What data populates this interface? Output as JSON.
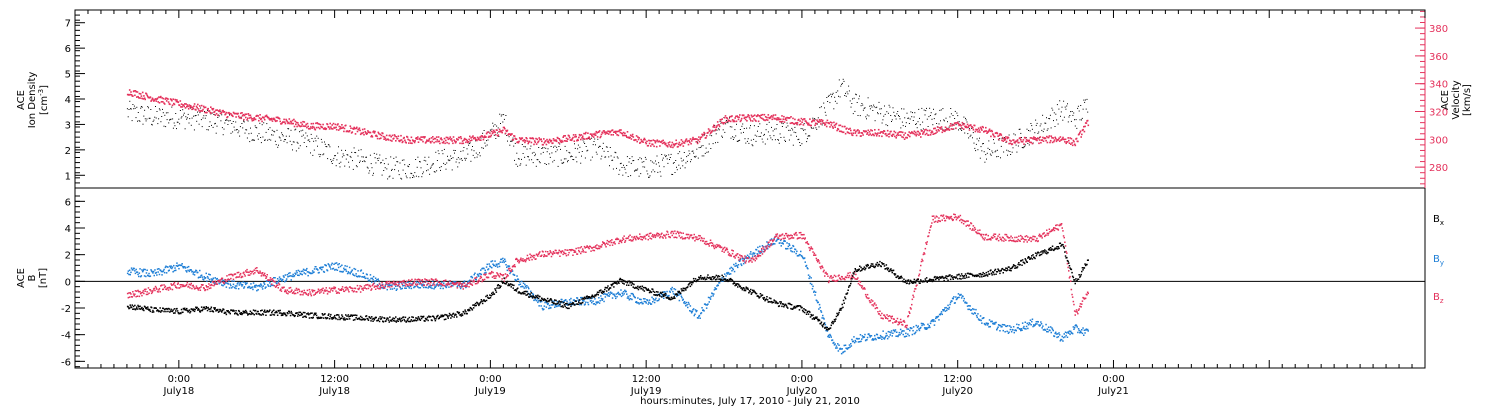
{
  "colors": {
    "black": "#000000",
    "pink": "#e4325c",
    "blue": "#1f7fd6"
  },
  "chart_data": [
    {
      "type": "scatter",
      "panel": "top",
      "ylabel_left_lines": [
        "ACE",
        "Ion Density",
        "[cm",
        "-3",
        "]"
      ],
      "ylabel_right_lines": [
        "ACE",
        "Velocity",
        "[km/s]"
      ],
      "left_ylim": [
        0.5,
        7.5
      ],
      "left_yticks": [
        1,
        2,
        3,
        4,
        5,
        6,
        7
      ],
      "right_ylim": [
        265,
        393
      ],
      "right_yticks": [
        280,
        300,
        320,
        340,
        360,
        380
      ],
      "series": [
        {
          "name": "",
          "color": "black",
          "axis": "left",
          "x_hours": [
            -4,
            -2,
            0,
            2,
            4,
            6,
            8,
            10,
            12,
            14,
            16,
            18,
            20,
            22,
            24,
            25,
            26,
            28,
            30,
            32,
            34,
            36,
            38,
            40,
            42,
            44,
            46,
            48,
            50,
            51,
            52,
            54,
            56,
            58,
            60,
            62,
            64,
            66,
            68,
            69,
            70
          ],
          "y": [
            3.5,
            3.3,
            3.3,
            3.2,
            3.0,
            2.7,
            2.5,
            2.3,
            1.8,
            1.6,
            1.3,
            1.3,
            1.6,
            1.7,
            2.6,
            3.2,
            1.8,
            1.8,
            1.8,
            2.1,
            1.4,
            1.3,
            1.5,
            2.0,
            3.0,
            2.6,
            2.7,
            2.6,
            3.7,
            4.5,
            3.8,
            3.5,
            3.2,
            3.3,
            3.2,
            1.9,
            2.2,
            2.8,
            3.6,
            3.2,
            3.8
          ]
        },
        {
          "name": "",
          "color": "pink",
          "axis": "right",
          "x_hours": [
            -4,
            -2,
            0,
            2,
            4,
            6,
            8,
            10,
            12,
            14,
            16,
            18,
            20,
            22,
            24,
            25,
            26,
            28,
            30,
            32,
            34,
            36,
            38,
            40,
            42,
            44,
            46,
            48,
            50,
            51,
            52,
            54,
            56,
            58,
            60,
            62,
            64,
            66,
            68,
            69,
            70
          ],
          "y": [
            335,
            330,
            326,
            322,
            318,
            316,
            314,
            310,
            310,
            306,
            302,
            300,
            300,
            300,
            304,
            307,
            300,
            299,
            301,
            304,
            306,
            298,
            297,
            300,
            315,
            316,
            316,
            313,
            312,
            308,
            305,
            305,
            303,
            306,
            311,
            307,
            299,
            300,
            301,
            298,
            313
          ]
        }
      ]
    },
    {
      "type": "scatter",
      "panel": "bottom",
      "ylabel_left_lines": [
        "ACE",
        "B",
        "[nT]"
      ],
      "ylim": [
        -6.5,
        7
      ],
      "yticks": [
        -6,
        -4,
        -2,
        0,
        2,
        4,
        6
      ],
      "zero_line": true,
      "legend": [
        "Bx",
        "By",
        "Bz"
      ],
      "series": [
        {
          "name": "Bx",
          "color": "black",
          "x_hours": [
            -4,
            -2,
            0,
            2,
            4,
            6,
            8,
            10,
            12,
            14,
            16,
            18,
            20,
            22,
            24,
            25,
            26,
            28,
            30,
            32,
            34,
            36,
            38,
            40,
            42,
            44,
            46,
            48,
            50,
            51,
            52,
            54,
            56,
            58,
            60,
            62,
            64,
            66,
            68,
            69,
            70
          ],
          "y": [
            -1.8,
            -2.1,
            -2.2,
            -2.0,
            -2.3,
            -2.3,
            -2.3,
            -2.5,
            -2.6,
            -2.7,
            -2.8,
            -2.8,
            -2.7,
            -2.3,
            -1.0,
            0.1,
            -0.6,
            -1.3,
            -1.8,
            -1.0,
            0.1,
            -0.6,
            -1.2,
            0.4,
            0.3,
            -0.7,
            -1.6,
            -2.0,
            -3.5,
            -2.0,
            0.9,
            1.4,
            0.0,
            0.2,
            0.4,
            0.6,
            1.0,
            2.0,
            2.8,
            0.0,
            1.6
          ]
        },
        {
          "name": "By",
          "color": "blue",
          "x_hours": [
            -4,
            -2,
            0,
            2,
            4,
            6,
            8,
            10,
            12,
            14,
            16,
            18,
            20,
            22,
            24,
            25,
            26,
            28,
            30,
            32,
            34,
            36,
            38,
            40,
            42,
            44,
            46,
            48,
            50,
            51,
            52,
            54,
            56,
            58,
            60,
            62,
            64,
            66,
            68,
            69,
            70
          ],
          "y": [
            0.8,
            0.6,
            1.2,
            0.4,
            -0.2,
            -0.4,
            0.3,
            0.8,
            1.2,
            0.6,
            -0.4,
            -0.2,
            -0.2,
            -0.2,
            1.3,
            1.5,
            0.2,
            -1.8,
            -1.5,
            -1.4,
            -0.8,
            -1.6,
            -0.6,
            -2.6,
            0.5,
            2.0,
            3.2,
            2.0,
            -4.0,
            -5.2,
            -4.3,
            -4.0,
            -3.8,
            -3.1,
            -1.0,
            -3.0,
            -3.6,
            -3.0,
            -4.2,
            -3.5,
            -3.8
          ]
        },
        {
          "name": "Bz",
          "color": "pink",
          "x_hours": [
            -4,
            -2,
            0,
            2,
            4,
            6,
            8,
            10,
            12,
            14,
            16,
            18,
            20,
            22,
            24,
            25,
            26,
            28,
            30,
            32,
            34,
            36,
            38,
            40,
            42,
            44,
            46,
            48,
            50,
            51,
            52,
            54,
            56,
            58,
            60,
            62,
            64,
            66,
            68,
            69,
            70
          ],
          "y": [
            -1.0,
            -0.6,
            -0.2,
            -0.4,
            0.4,
            0.9,
            -0.6,
            -0.8,
            -0.6,
            -0.5,
            -0.2,
            0.0,
            0.0,
            -0.3,
            0.6,
            0.3,
            1.6,
            2.1,
            2.2,
            2.6,
            3.2,
            3.4,
            3.6,
            3.3,
            2.4,
            1.5,
            3.4,
            3.5,
            0.2,
            0.4,
            0.5,
            -2.5,
            -3.2,
            4.7,
            4.9,
            3.4,
            3.3,
            3.2,
            4.3,
            -2.5,
            -0.6
          ]
        }
      ]
    }
  ],
  "x_axis": {
    "range_hours": [
      -8,
      96
    ],
    "ticks": [
      {
        "hour": 0,
        "time": "0:00",
        "day": "July18"
      },
      {
        "hour": 12,
        "time": "12:00",
        "day": "July18"
      },
      {
        "hour": 24,
        "time": "0:00",
        "day": "July19"
      },
      {
        "hour": 36,
        "time": "12:00",
        "day": "July19"
      },
      {
        "hour": 48,
        "time": "0:00",
        "day": "July20"
      },
      {
        "hour": 60,
        "time": "12:00",
        "day": "July20"
      },
      {
        "hour": 72,
        "time": "0:00",
        "day": "July21"
      }
    ],
    "xlabel": "hours:minutes, July 17, 2010 - July 21, 2010"
  }
}
